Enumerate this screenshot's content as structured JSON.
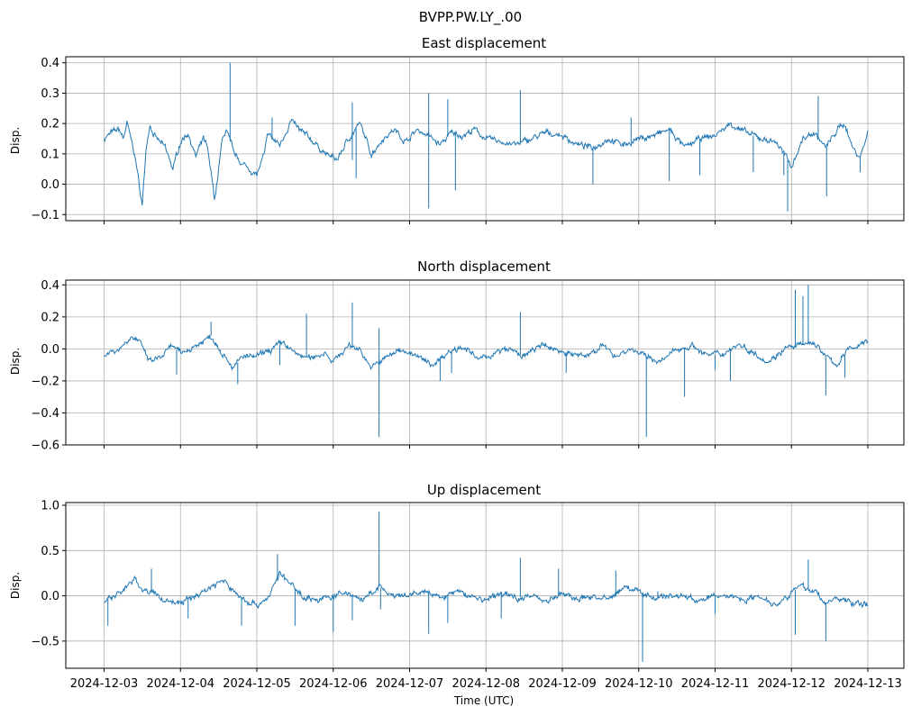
{
  "chart_data": {
    "suptitle": "BVPP.PW.LY_.00",
    "type": "line",
    "xlabel": "Time (UTC)",
    "x_ticks": [
      "2024-12-03",
      "2024-12-04",
      "2024-12-05",
      "2024-12-06",
      "2024-12-07",
      "2024-12-08",
      "2024-12-09",
      "2024-12-10",
      "2024-12-11",
      "2024-12-12",
      "2024-12-13"
    ],
    "x_range_days": [
      0,
      10
    ],
    "line_color": "#1f77b4",
    "grid": true,
    "panels": [
      {
        "title": "East displacement",
        "ylabel": "Disp.",
        "ylim": [
          -0.12,
          0.42
        ],
        "y_ticks": [
          "0.4",
          "0.3",
          "0.2",
          "0.1",
          "0.0",
          "−0.1"
        ],
        "y_tick_values": [
          0.4,
          0.3,
          0.2,
          0.1,
          0.0,
          -0.1
        ],
        "x_days": [
          0,
          0.1,
          0.2,
          0.25,
          0.3,
          0.4,
          0.5,
          0.55,
          0.6,
          0.65,
          0.8,
          0.9,
          1.0,
          1.1,
          1.2,
          1.3,
          1.35,
          1.45,
          1.55,
          1.6,
          1.7,
          1.8,
          1.9,
          2.0,
          2.1,
          2.15,
          2.2,
          2.3,
          2.45,
          2.55,
          2.7,
          2.9,
          3.05,
          3.2,
          3.35,
          3.5,
          3.65,
          3.8,
          3.95,
          4.1,
          4.25,
          4.4,
          4.55,
          4.7,
          4.85,
          5.0,
          5.2,
          5.4,
          5.6,
          5.8,
          6.0,
          6.2,
          6.4,
          6.6,
          6.8,
          7.0,
          7.2,
          7.4,
          7.6,
          7.8,
          8.0,
          8.2,
          8.4,
          8.6,
          8.8,
          9.0,
          9.15,
          9.3,
          9.45,
          9.6,
          9.7,
          9.8,
          9.9,
          10.0
        ],
        "values": [
          0.15,
          0.17,
          0.18,
          0.15,
          0.2,
          0.1,
          -0.07,
          0.12,
          0.2,
          0.16,
          0.12,
          0.05,
          0.14,
          0.17,
          0.09,
          0.15,
          0.12,
          -0.05,
          0.15,
          0.18,
          0.1,
          0.07,
          0.05,
          0.03,
          0.1,
          0.17,
          0.15,
          0.13,
          0.21,
          0.18,
          0.15,
          0.1,
          0.08,
          0.15,
          0.2,
          0.1,
          0.15,
          0.18,
          0.14,
          0.18,
          0.16,
          0.13,
          0.17,
          0.16,
          0.18,
          0.15,
          0.14,
          0.13,
          0.15,
          0.17,
          0.16,
          0.13,
          0.12,
          0.15,
          0.13,
          0.15,
          0.16,
          0.18,
          0.12,
          0.15,
          0.16,
          0.2,
          0.17,
          0.15,
          0.14,
          0.06,
          0.15,
          0.17,
          0.12,
          0.18,
          0.2,
          0.12,
          0.09,
          0.17
        ],
        "spikes": [
          [
            1.65,
            0.4
          ],
          [
            2.2,
            0.22
          ],
          [
            3.25,
            0.27
          ],
          [
            3.25,
            0.08
          ],
          [
            3.3,
            0.02
          ],
          [
            4.25,
            -0.08
          ],
          [
            4.25,
            0.3
          ],
          [
            4.5,
            0.28
          ],
          [
            4.6,
            -0.02
          ],
          [
            5.45,
            0.31
          ],
          [
            6.4,
            0.0
          ],
          [
            6.9,
            0.22
          ],
          [
            7.4,
            0.01
          ],
          [
            7.8,
            0.03
          ],
          [
            8.5,
            0.04
          ],
          [
            8.9,
            0.03
          ],
          [
            9.35,
            0.29
          ],
          [
            9.46,
            -0.04
          ],
          [
            9.9,
            0.04
          ]
        ],
        "spike_down": [
          [
            8.95,
            -0.09
          ]
        ]
      },
      {
        "title": "North displacement",
        "ylabel": "Disp.",
        "ylim": [
          -0.6,
          0.43
        ],
        "y_ticks": [
          "0.4",
          "0.2",
          "0.0",
          "−0.2",
          "−0.4",
          "−0.6"
        ],
        "y_tick_values": [
          0.4,
          0.2,
          0.0,
          -0.2,
          -0.4,
          -0.6
        ],
        "x_days": [
          0,
          0.2,
          0.35,
          0.45,
          0.6,
          0.75,
          0.9,
          1.0,
          1.2,
          1.4,
          1.55,
          1.7,
          1.8,
          2.0,
          2.2,
          2.35,
          2.5,
          2.7,
          2.9,
          3.0,
          3.2,
          3.35,
          3.5,
          3.7,
          3.9,
          4.1,
          4.3,
          4.5,
          4.7,
          4.9,
          5.1,
          5.3,
          5.5,
          5.7,
          5.9,
          6.1,
          6.3,
          6.5,
          6.7,
          6.9,
          7.1,
          7.3,
          7.5,
          7.7,
          7.9,
          8.1,
          8.3,
          8.5,
          8.7,
          8.9,
          9.1,
          9.3,
          9.45,
          9.6,
          9.75,
          9.9,
          10.0
        ],
        "values": [
          -0.03,
          0.0,
          0.08,
          0.05,
          -0.08,
          -0.05,
          0.02,
          -0.03,
          0.02,
          0.08,
          -0.02,
          -0.12,
          -0.05,
          -0.05,
          0.0,
          0.04,
          -0.03,
          -0.06,
          -0.02,
          -0.08,
          0.02,
          0.0,
          -0.12,
          -0.05,
          0.0,
          -0.05,
          -0.1,
          -0.02,
          0.02,
          -0.07,
          -0.03,
          0.0,
          -0.05,
          0.02,
          0.0,
          -0.03,
          -0.05,
          0.02,
          -0.04,
          0.0,
          -0.05,
          -0.08,
          0.0,
          0.02,
          -0.04,
          -0.03,
          0.03,
          -0.02,
          -0.08,
          0.0,
          0.02,
          0.04,
          -0.05,
          -0.1,
          0.0,
          0.03,
          0.05
        ],
        "spikes": [
          [
            0.4,
            0.07
          ],
          [
            0.95,
            -0.16
          ],
          [
            1.4,
            0.17
          ],
          [
            1.75,
            -0.22
          ],
          [
            2.3,
            -0.1
          ],
          [
            2.65,
            0.22
          ],
          [
            3.25,
            0.29
          ],
          [
            3.6,
            0.13
          ],
          [
            4.4,
            -0.2
          ],
          [
            4.55,
            -0.15
          ],
          [
            5.45,
            0.23
          ],
          [
            6.05,
            -0.15
          ],
          [
            7.6,
            -0.3
          ],
          [
            8.0,
            -0.13
          ],
          [
            8.2,
            -0.2
          ],
          [
            9.05,
            0.37
          ],
          [
            9.15,
            0.33
          ],
          [
            9.22,
            0.4
          ],
          [
            9.45,
            -0.29
          ],
          [
            9.7,
            -0.18
          ]
        ],
        "spike_down": [
          [
            3.6,
            -0.55
          ],
          [
            7.1,
            -0.55
          ]
        ]
      },
      {
        "title": "Up displacement",
        "ylabel": "Disp.",
        "ylim": [
          -0.8,
          1.03
        ],
        "y_ticks": [
          "1.0",
          "0.5",
          "0.0",
          "−0.5"
        ],
        "y_tick_values": [
          1.0,
          0.5,
          0.0,
          -0.5
        ],
        "x_days": [
          0,
          0.15,
          0.3,
          0.4,
          0.5,
          0.65,
          0.8,
          1.0,
          1.2,
          1.4,
          1.55,
          1.7,
          1.85,
          2.0,
          2.15,
          2.3,
          2.45,
          2.6,
          2.8,
          3.0,
          3.2,
          3.4,
          3.6,
          3.8,
          4.0,
          4.2,
          4.4,
          4.6,
          4.8,
          5.0,
          5.2,
          5.4,
          5.6,
          5.8,
          6.0,
          6.2,
          6.4,
          6.6,
          6.8,
          7.0,
          7.2,
          7.4,
          7.6,
          7.8,
          8.0,
          8.2,
          8.4,
          8.6,
          8.8,
          9.0,
          9.15,
          9.3,
          9.45,
          9.6,
          9.75,
          9.9,
          10.0
        ],
        "values": [
          -0.05,
          0.0,
          0.1,
          0.18,
          0.08,
          0.02,
          -0.05,
          -0.08,
          0.0,
          0.1,
          0.17,
          0.05,
          -0.05,
          -0.1,
          -0.02,
          0.25,
          0.12,
          0.0,
          -0.05,
          0.0,
          0.03,
          -0.05,
          0.1,
          -0.02,
          0.0,
          0.05,
          -0.03,
          0.05,
          0.0,
          -0.05,
          0.03,
          -0.02,
          0.0,
          -0.05,
          0.02,
          -0.04,
          0.0,
          -0.05,
          0.1,
          0.05,
          -0.02,
          0.0,
          0.0,
          -0.06,
          0.0,
          0.0,
          -0.04,
          0.0,
          -0.1,
          0.05,
          0.1,
          0.05,
          -0.08,
          -0.03,
          -0.06,
          -0.1,
          -0.1
        ],
        "spikes": [
          [
            0.05,
            -0.33
          ],
          [
            0.62,
            0.3
          ],
          [
            1.1,
            -0.25
          ],
          [
            1.8,
            -0.33
          ],
          [
            2.27,
            0.46
          ],
          [
            2.5,
            -0.33
          ],
          [
            3.0,
            -0.4
          ],
          [
            3.25,
            -0.27
          ],
          [
            3.6,
            0.93
          ],
          [
            3.62,
            -0.15
          ],
          [
            4.25,
            -0.42
          ],
          [
            4.5,
            -0.3
          ],
          [
            5.2,
            -0.25
          ],
          [
            5.45,
            0.42
          ],
          [
            5.95,
            0.3
          ],
          [
            6.7,
            0.28
          ],
          [
            7.25,
            0.05
          ],
          [
            8.0,
            -0.2
          ],
          [
            9.05,
            -0.43
          ],
          [
            9.22,
            0.4
          ],
          [
            9.45,
            -0.5
          ]
        ],
        "spike_down": [
          [
            7.05,
            -0.73
          ]
        ]
      }
    ]
  }
}
